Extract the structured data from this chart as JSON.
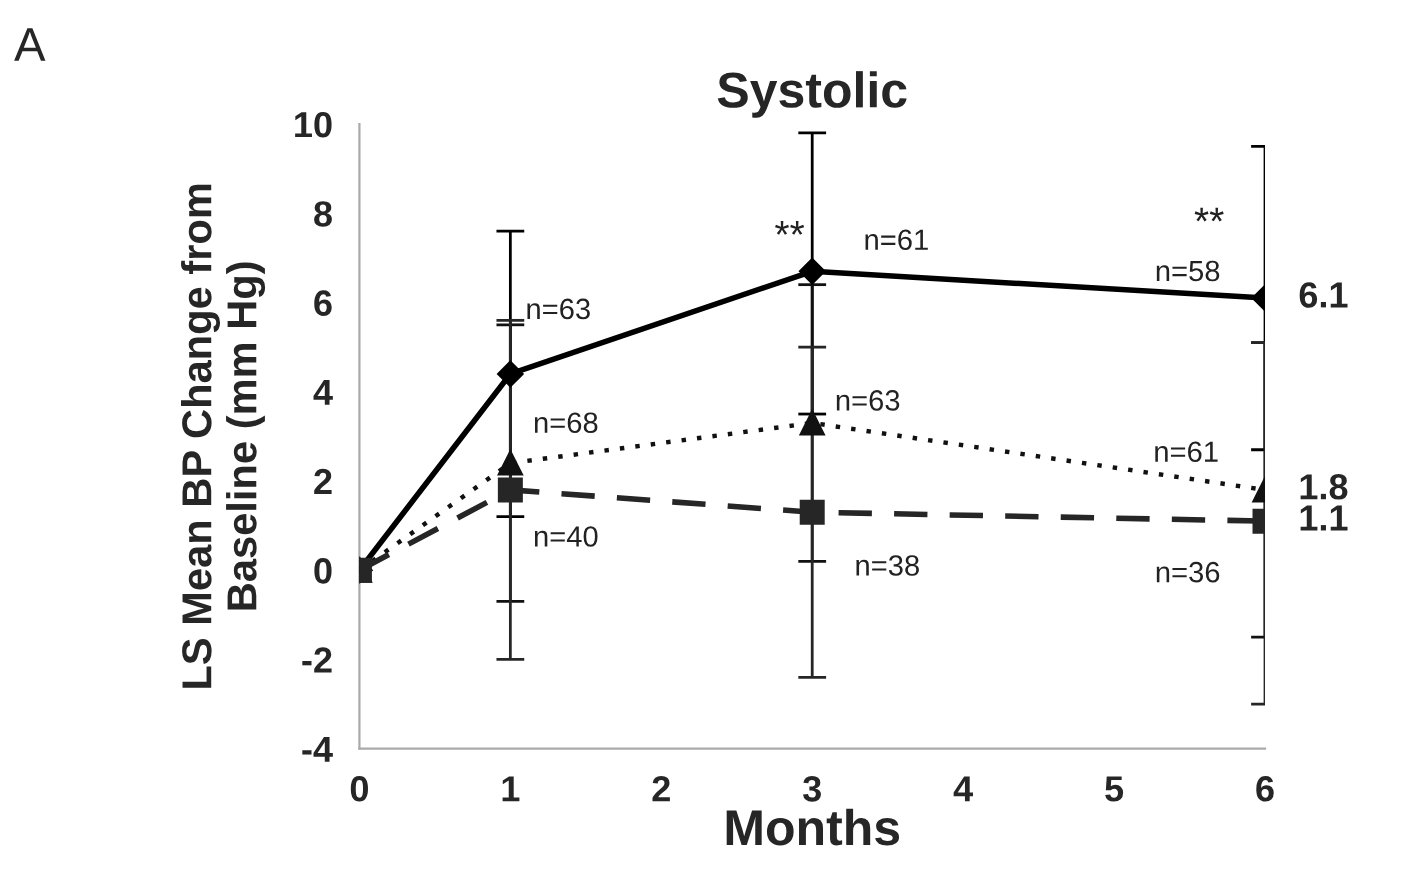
{
  "chart_data": {
    "type": "line",
    "title": "Systolic",
    "xlabel": "Months",
    "ylabel": "LS Mean BP Change from\nBaseline (mm Hg)",
    "x": [
      0,
      1,
      3,
      6
    ],
    "series": [
      {
        "color": "#000000",
        "marker": "diamond",
        "line_style": "solid",
        "values": [
          0,
          4.4,
          6.7,
          6.1
        ],
        "errors": [
          null,
          [
            1.2,
            7.6
          ],
          [
            3.5,
            9.8
          ],
          [
            2.7,
            9.5
          ]
        ],
        "value_labels": [
          null,
          null,
          null,
          "6.1"
        ]
      },
      {
        "color": "#111111",
        "marker": "triangle",
        "line_style": "dotted",
        "values": [
          0,
          2.4,
          3.3,
          1.8
        ],
        "errors": [
          null,
          [
            -0.7,
            5.5
          ],
          [
            0.2,
            6.4
          ],
          [
            -1.5,
            5.1
          ]
        ],
        "value_labels": [
          null,
          null,
          null,
          "1.8"
        ]
      },
      {
        "color": "#262626",
        "marker": "square",
        "line_style": "dashed",
        "values": [
          0,
          1.8,
          1.3,
          1.1
        ],
        "errors": [
          null,
          [
            -2.0,
            5.6
          ],
          [
            -2.4,
            5.0
          ],
          [
            -3.0,
            5.1
          ]
        ],
        "value_labels": [
          null,
          null,
          null,
          "1.1"
        ]
      }
    ],
    "xlim": [
      0,
      6
    ],
    "xticks": [
      0,
      1,
      2,
      3,
      4,
      5,
      6
    ],
    "ylim": [
      -4,
      10
    ],
    "yticks": [
      -4,
      -2,
      0,
      2,
      4,
      6,
      8,
      10
    ],
    "grid": false,
    "legend": false,
    "annotations": [
      "A",
      "n=63",
      "n=68",
      "n=40",
      "n=61",
      "n=63",
      "n=38",
      "n=58",
      "n=61",
      "n=36",
      "**",
      "**"
    ]
  }
}
